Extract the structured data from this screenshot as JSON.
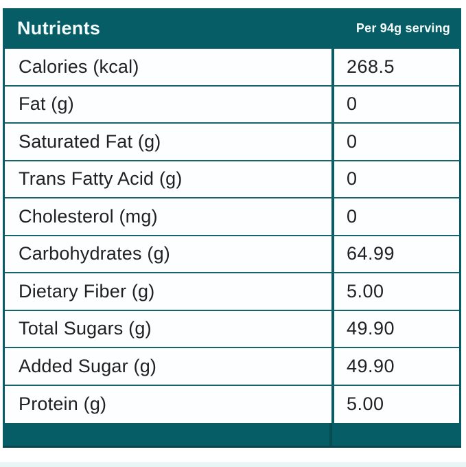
{
  "header": {
    "title": "Nutrients",
    "serving_label": "Per 94g serving"
  },
  "rows": [
    {
      "label": "Calories (kcal)",
      "value": "268.5"
    },
    {
      "label": "Fat (g)",
      "value": "0"
    },
    {
      "label": "Saturated Fat (g)",
      "value": "0"
    },
    {
      "label": "Trans Fatty Acid (g)",
      "value": "0"
    },
    {
      "label": "Cholesterol (mg)",
      "value": "0"
    },
    {
      "label": "Carbohydrates (g)",
      "value": "64.99"
    },
    {
      "label": "Dietary Fiber (g)",
      "value": "5.00"
    },
    {
      "label": "Total Sugars (g)",
      "value": "49.90"
    },
    {
      "label": "Added Sugar (g)",
      "value": "49.90"
    },
    {
      "label": "Protein (g)",
      "value": "5.00"
    }
  ],
  "colors": {
    "teal": "#075d66",
    "row_separator": "#17636c",
    "row_background": "#fcfeff",
    "text": "#212121",
    "header_text": "#f4fbfb",
    "bottom_strip": "#e8f6f6"
  },
  "chart_data": {
    "type": "table",
    "title": "Nutrients",
    "columns": [
      "Nutrients",
      "Per 94g serving"
    ],
    "rows": [
      [
        "Calories (kcal)",
        "268.5"
      ],
      [
        "Fat (g)",
        "0"
      ],
      [
        "Saturated Fat (g)",
        "0"
      ],
      [
        "Trans Fatty Acid (g)",
        "0"
      ],
      [
        "Cholesterol (mg)",
        "0"
      ],
      [
        "Carbohydrates (g)",
        "64.99"
      ],
      [
        "Dietary Fiber (g)",
        "5.00"
      ],
      [
        "Total Sugars (g)",
        "49.90"
      ],
      [
        "Added Sugar (g)",
        "49.90"
      ],
      [
        "Protein (g)",
        "5.00"
      ]
    ]
  }
}
